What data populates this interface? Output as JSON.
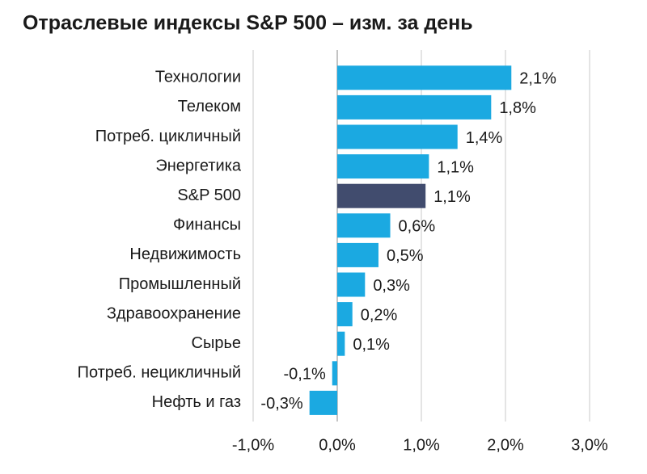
{
  "chart_data": {
    "type": "barh",
    "title": "Отраслевые индексы S&P 500 – изм. за день",
    "categories": [
      "Технологии",
      "Телеком",
      "Потреб. цикличный",
      "Энергетика",
      "S&P 500",
      "Финансы",
      "Недвижимость",
      "Промышленный",
      "Здравоохранение",
      "Сырье",
      "Потреб. нецикличный",
      "Нефть и газ"
    ],
    "values": [
      2.07,
      1.83,
      1.43,
      1.09,
      1.05,
      0.63,
      0.49,
      0.33,
      0.18,
      0.09,
      -0.06,
      -0.33
    ],
    "value_labels": [
      "2,1%",
      "1,8%",
      "1,4%",
      "1,1%",
      "1,1%",
      "0,6%",
      "0,5%",
      "0,3%",
      "0,2%",
      "0,1%",
      "-0,1%",
      "-0,3%"
    ],
    "colors": [
      "#1ba9e1",
      "#1ba9e1",
      "#1ba9e1",
      "#1ba9e1",
      "#414c6e",
      "#1ba9e1",
      "#1ba9e1",
      "#1ba9e1",
      "#1ba9e1",
      "#1ba9e1",
      "#1ba9e1",
      "#1ba9e1"
    ],
    "xlim": [
      -1,
      3
    ],
    "xticks": [
      {
        "value": -1,
        "label": "-1,0%"
      },
      {
        "value": 0,
        "label": "0,0%"
      },
      {
        "value": 1,
        "label": "1,0%"
      },
      {
        "value": 2,
        "label": "2,0%"
      },
      {
        "value": 3,
        "label": "3,0%"
      }
    ],
    "grid": true
  }
}
